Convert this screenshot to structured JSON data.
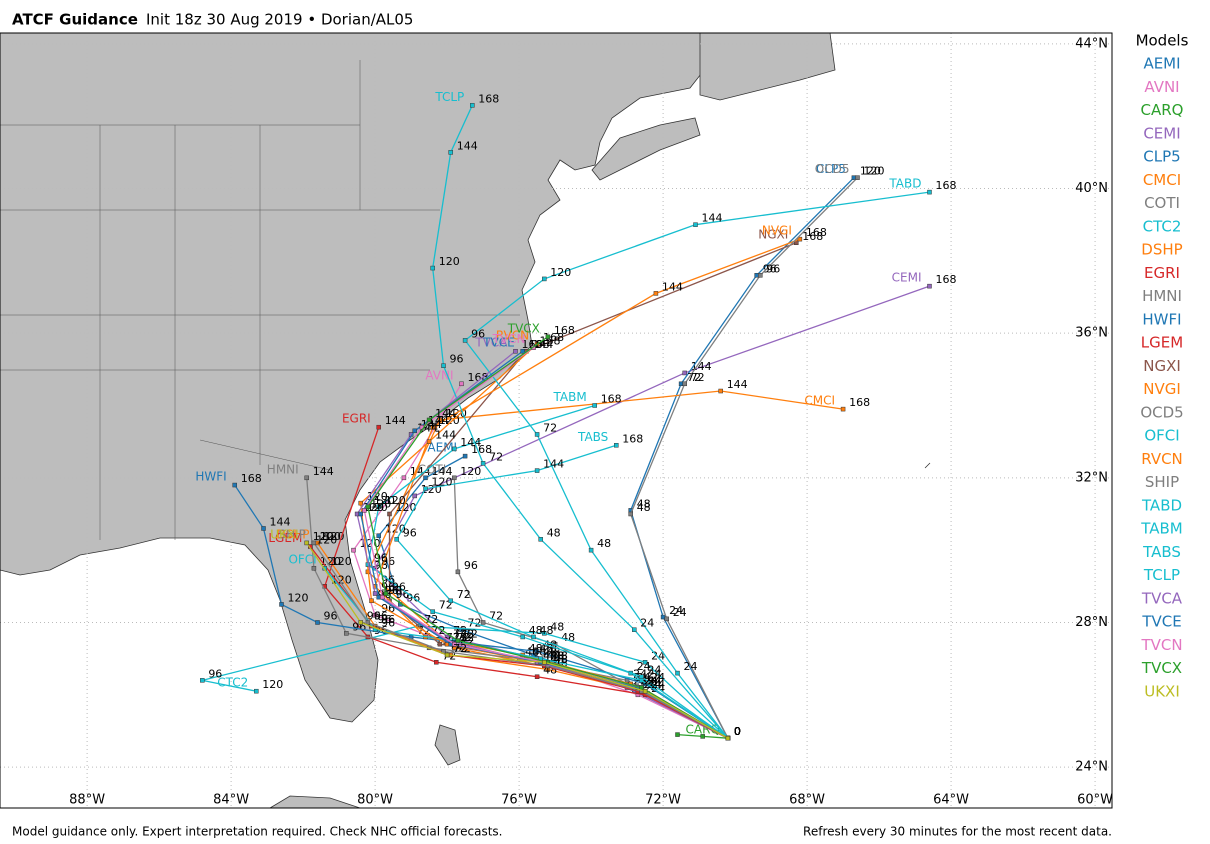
{
  "chart_data": {
    "type": "track",
    "title": "ATCF Guidance",
    "subtitle": "Init 18z 30 Aug 2019 • Dorian/AL05",
    "legend_title": "Models",
    "footer_left": "Model guidance only. Expert interpretation required. Check NHC official forecasts.",
    "footer_right": "Refresh every 30 minutes for the most recent data.",
    "grid": true,
    "xlim": [
      -90.42,
      -59.53
    ],
    "ylim": [
      22.87,
      44.3
    ],
    "xticks": [
      {
        "value": -88,
        "label": "88°W"
      },
      {
        "value": -84,
        "label": "84°W"
      },
      {
        "value": -80,
        "label": "80°W"
      },
      {
        "value": -76,
        "label": "76°W"
      },
      {
        "value": -72,
        "label": "72°W"
      },
      {
        "value": -68,
        "label": "68°W"
      },
      {
        "value": -64,
        "label": "64°W"
      },
      {
        "value": -60,
        "label": "60°W"
      }
    ],
    "yticks": [
      {
        "value": 24,
        "label": "24°N"
      },
      {
        "value": 28,
        "label": "28°N"
      },
      {
        "value": 32,
        "label": "32°N"
      },
      {
        "value": 36,
        "label": "36°N"
      },
      {
        "value": 40,
        "label": "40°N"
      },
      {
        "value": 44,
        "label": "44°N"
      }
    ],
    "series": [
      {
        "name": "AEMI",
        "color": "#1f77b4",
        "x": [
          -70.2,
          -72.8,
          -75.6,
          -77.6,
          -79.3,
          -79.9,
          -78.6,
          -77.5
        ],
        "values": [
          24.8,
          26.1,
          27.1,
          27.8,
          28.5,
          30.4,
          32.0,
          32.6
        ],
        "hours": [
          0,
          24,
          48,
          72,
          96,
          120,
          144,
          168
        ]
      },
      {
        "name": "AVNI",
        "color": "#e377c2",
        "x": [
          -70.2,
          -72.7,
          -75.3,
          -77.9,
          -80.0,
          -80.6,
          -79.2,
          -77.6
        ],
        "values": [
          24.8,
          26.0,
          26.9,
          27.4,
          28.2,
          30.0,
          32.0,
          34.6
        ],
        "hours": [
          0,
          24,
          48,
          72,
          96,
          120,
          144,
          168
        ]
      },
      {
        "name": "CARQ",
        "color": "#2ca02c",
        "x": [
          -71.6,
          -70.9,
          -70.2
        ],
        "values": [
          24.9,
          24.85,
          24.8
        ],
        "hours": [
          null,
          null,
          0
        ]
      },
      {
        "name": "CEMI",
        "color": "#9467bd",
        "x": [
          -70.2,
          -73.0,
          -75.5,
          -78.0,
          -80.0,
          -78.9,
          -71.4,
          -64.6
        ],
        "values": [
          24.8,
          26.2,
          27.0,
          27.6,
          29.5,
          31.5,
          34.9,
          37.3
        ],
        "hours": [
          0,
          24,
          48,
          72,
          96,
          120,
          144,
          168
        ]
      },
      {
        "name": "CLP5",
        "color": "#1f77b4",
        "x": [
          -70.2,
          -72.0,
          -72.9,
          -71.5,
          -69.4,
          -66.7
        ],
        "values": [
          24.8,
          28.15,
          31.1,
          34.6,
          37.6,
          40.3
        ],
        "hours": [
          0,
          24,
          48,
          72,
          96,
          120
        ]
      },
      {
        "name": "CMCI",
        "color": "#ff7f0e",
        "x": [
          -70.2,
          -72.6,
          -75.3,
          -77.8,
          -80.2,
          -78.2,
          -70.4,
          -67.0
        ],
        "values": [
          24.8,
          26.2,
          26.8,
          27.3,
          29.4,
          33.6,
          34.4,
          33.9
        ],
        "hours": [
          0,
          24,
          48,
          72,
          96,
          120,
          144,
          168
        ]
      },
      {
        "name": "COTI",
        "color": "#7f7f7f",
        "x": [
          -70.2,
          -73.0,
          -75.0,
          -77.0,
          -77.7,
          -77.8
        ],
        "values": [
          24.8,
          26.3,
          27.4,
          28.0,
          29.4,
          32.0
        ],
        "hours": [
          0,
          24,
          48,
          72,
          96,
          120
        ]
      },
      {
        "name": "CTC2",
        "color": "#17becf",
        "x": [
          -70.2,
          -72.5,
          -75.3,
          -78.8,
          -84.8,
          -83.3
        ],
        "values": [
          24.8,
          26.9,
          27.7,
          27.9,
          26.4,
          26.1
        ],
        "hours": [
          0,
          24,
          48,
          72,
          96,
          120
        ]
      },
      {
        "name": "DSHP",
        "color": "#ff7f0e",
        "x": [
          -70.2,
          -72.6,
          -75.2,
          -77.9,
          -80.0,
          -81.6
        ],
        "values": [
          24.8,
          26.1,
          26.7,
          27.1,
          27.9,
          30.2
        ],
        "hours": [
          0,
          24,
          48,
          72,
          96,
          120
        ]
      },
      {
        "name": "EGRI",
        "color": "#d62728",
        "x": [
          -70.2,
          -72.5,
          -75.5,
          -78.3,
          -80.2,
          -81.4,
          -79.9
        ],
        "values": [
          24.8,
          26.0,
          26.5,
          26.9,
          27.6,
          29.0,
          33.4
        ],
        "hours": [
          0,
          24,
          48,
          72,
          96,
          120,
          144
        ]
      },
      {
        "name": "HMNI",
        "color": "#7f7f7f",
        "x": [
          -70.2,
          -73.0,
          -76.0,
          -78.5,
          -80.8,
          -81.7,
          -81.9
        ],
        "values": [
          24.8,
          26.4,
          27.0,
          27.3,
          27.7,
          29.5,
          32.0
        ],
        "hours": [
          0,
          24,
          48,
          72,
          96,
          120,
          144
        ]
      },
      {
        "name": "HWFI",
        "color": "#1f77b4",
        "x": [
          -70.2,
          -72.5,
          -75.5,
          -79.0,
          -81.6,
          -82.6,
          -83.1,
          -83.9
        ],
        "values": [
          24.8,
          26.3,
          27.2,
          27.6,
          28.0,
          28.5,
          30.6,
          31.8
        ],
        "hours": [
          0,
          24,
          48,
          72,
          96,
          120,
          144,
          168
        ]
      },
      {
        "name": "LGEM",
        "color": "#d62728",
        "x": [
          -70.2,
          -72.7,
          -75.3,
          -78.0,
          -80.1,
          -81.8
        ],
        "values": [
          24.8,
          26.1,
          26.8,
          27.1,
          27.9,
          30.1
        ],
        "hours": [
          0,
          24,
          48,
          72,
          96,
          120
        ]
      },
      {
        "name": "NGXI",
        "color": "#8c564b",
        "x": [
          -70.2,
          -72.8,
          -75.8,
          -78.2,
          -79.6,
          -79.6,
          -75.8,
          -68.3
        ],
        "values": [
          24.8,
          26.2,
          27.0,
          27.4,
          28.6,
          31.0,
          35.5,
          38.5
        ],
        "hours": [
          0,
          24,
          48,
          72,
          96,
          120,
          144,
          168
        ]
      },
      {
        "name": "NVGI",
        "color": "#ff7f0e",
        "x": [
          -70.2,
          -72.9,
          -75.9,
          -78.6,
          -80.0,
          -78.4,
          -72.2,
          -68.2
        ],
        "values": [
          24.8,
          26.3,
          27.1,
          27.6,
          29.0,
          33.4,
          37.1,
          38.6
        ],
        "hours": [
          0,
          24,
          48,
          72,
          96,
          120,
          144,
          168
        ]
      },
      {
        "name": "OCD5",
        "color": "#7f7f7f",
        "x": [
          -70.2,
          -71.9,
          -72.9,
          -71.4,
          -69.3,
          -66.6
        ],
        "values": [
          24.8,
          28.1,
          31.0,
          34.6,
          37.6,
          40.3
        ],
        "hours": [
          0,
          24,
          48,
          72,
          96,
          120
        ]
      },
      {
        "name": "OFCI",
        "color": "#17becf",
        "x": [
          -70.2,
          -72.6,
          -75.4,
          -77.8,
          -80.0,
          -81.4
        ],
        "values": [
          24.8,
          26.4,
          27.0,
          27.5,
          27.8,
          29.5
        ],
        "hours": [
          0,
          24,
          48,
          72,
          96,
          120
        ]
      },
      {
        "name": "RVCN",
        "color": "#ff7f0e",
        "x": [
          -70.2,
          -72.7,
          -75.5,
          -78.0,
          -80.1,
          -80.4,
          -78.5,
          -75.5
        ],
        "values": [
          24.8,
          26.2,
          26.9,
          27.4,
          28.6,
          31.3,
          33.0,
          35.7
        ],
        "hours": [
          0,
          24,
          48,
          72,
          96,
          120,
          144,
          168
        ]
      },
      {
        "name": "SHIP",
        "color": "#7f7f7f",
        "x": [
          -70.2,
          -72.6,
          -75.2,
          -78.1,
          -80.2,
          -81.7
        ],
        "values": [
          24.8,
          26.1,
          26.8,
          27.2,
          28.0,
          30.2
        ],
        "hours": [
          0,
          24,
          48,
          72,
          96,
          120
        ]
      },
      {
        "name": "TABD",
        "color": "#17becf",
        "x": [
          -70.2,
          -71.6,
          -74.0,
          -75.5,
          -77.5,
          -75.3,
          -71.1,
          -64.6
        ],
        "values": [
          24.8,
          26.6,
          30.0,
          33.2,
          35.8,
          37.5,
          39.0,
          39.9
        ],
        "hours": [
          0,
          24,
          48,
          72,
          96,
          120,
          144,
          168
        ]
      },
      {
        "name": "TABM",
        "color": "#17becf",
        "x": [
          -70.2,
          -72.9,
          -75.9,
          -78.4,
          -80.2,
          -79.9,
          -77.8,
          -73.9
        ],
        "values": [
          24.8,
          26.6,
          27.6,
          28.3,
          29.6,
          31.2,
          32.8,
          34.0
        ],
        "hours": [
          0,
          24,
          48,
          72,
          96,
          120,
          144,
          168
        ]
      },
      {
        "name": "TABS",
        "color": "#17becf",
        "x": [
          -70.2,
          -72.6,
          -75.6,
          -77.9,
          -79.4,
          -78.6,
          -75.5,
          -73.3
        ],
        "values": [
          24.8,
          26.5,
          27.6,
          28.6,
          30.3,
          31.7,
          32.2,
          32.9
        ],
        "hours": [
          0,
          24,
          48,
          72,
          96,
          120,
          144,
          168
        ]
      },
      {
        "name": "TCLP",
        "color": "#17becf",
        "x": [
          -70.2,
          -72.8,
          -75.4,
          -77.0,
          -78.1,
          -78.4,
          -77.9,
          -77.3
        ],
        "values": [
          24.8,
          27.8,
          30.3,
          32.4,
          35.1,
          37.8,
          41.0,
          42.3
        ],
        "hours": [
          0,
          24,
          48,
          72,
          96,
          120,
          144,
          168
        ]
      },
      {
        "name": "TVCA",
        "color": "#9467bd",
        "x": [
          -70.2,
          -72.7,
          -75.5,
          -78.0,
          -80.0,
          -80.5,
          -79.0,
          -76.1
        ],
        "values": [
          24.8,
          26.2,
          26.9,
          27.5,
          28.8,
          31.0,
          33.2,
          35.5
        ],
        "hours": [
          0,
          24,
          48,
          72,
          96,
          120,
          144,
          168
        ]
      },
      {
        "name": "TVCE",
        "color": "#1f77b4",
        "x": [
          -70.2,
          -72.7,
          -75.4,
          -77.9,
          -79.9,
          -80.4,
          -78.9,
          -75.9
        ],
        "values": [
          24.8,
          26.2,
          26.9,
          27.4,
          28.7,
          31.0,
          33.3,
          35.5
        ],
        "hours": [
          0,
          24,
          48,
          72,
          96,
          120,
          144,
          168
        ]
      },
      {
        "name": "TVCN",
        "color": "#e377c2",
        "x": [
          -70.2,
          -72.6,
          -75.3,
          -77.8,
          -79.8,
          -80.3,
          -78.7,
          -75.6
        ],
        "values": [
          24.8,
          26.2,
          26.9,
          27.4,
          28.7,
          31.1,
          33.4,
          35.6
        ],
        "hours": [
          0,
          24,
          48,
          72,
          96,
          120,
          144,
          168
        ]
      },
      {
        "name": "TVCX",
        "color": "#2ca02c",
        "x": [
          -70.2,
          -72.6,
          -75.2,
          -77.7,
          -79.7,
          -80.2,
          -78.5,
          -75.2
        ],
        "values": [
          24.8,
          26.2,
          26.9,
          27.5,
          28.8,
          31.2,
          33.6,
          35.9
        ],
        "hours": [
          0,
          24,
          48,
          72,
          96,
          120,
          144,
          168
        ]
      },
      {
        "name": "UKXI",
        "color": "#bcbd22",
        "x": [
          -70.2,
          -72.5,
          -75.3,
          -78.0,
          -80.4,
          -81.9
        ],
        "values": [
          24.8,
          26.1,
          26.9,
          27.1,
          28.0,
          30.2
        ],
        "hours": [
          0,
          24,
          48,
          72,
          96,
          120
        ]
      }
    ]
  }
}
